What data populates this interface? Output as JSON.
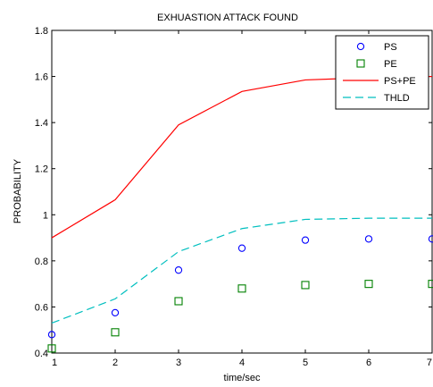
{
  "chart_data": {
    "type": "line",
    "title": "EXHUASTION ATTACK FOUND",
    "xlabel": "time/sec",
    "ylabel": "PROBABILITY",
    "x": [
      1,
      2,
      3,
      4,
      5,
      6,
      7
    ],
    "xlim": [
      1,
      7
    ],
    "ylim": [
      0.4,
      1.8
    ],
    "xticks": [
      "1",
      "2",
      "3",
      "4",
      "5",
      "6",
      "7"
    ],
    "yticks": [
      "0.4",
      "0.6",
      "0.8",
      "1",
      "1.2",
      "1.4",
      "1.6",
      "1.8"
    ],
    "grid": false,
    "legend_position": "top-right",
    "series": [
      {
        "name": "PS",
        "style": "circle-marker",
        "color": "#0000ff",
        "values": [
          0.48,
          0.575,
          0.76,
          0.855,
          0.89,
          0.895,
          0.895
        ]
      },
      {
        "name": "PE",
        "style": "square-marker",
        "color": "#008000",
        "values": [
          0.42,
          0.49,
          0.625,
          0.68,
          0.695,
          0.7,
          0.7
        ]
      },
      {
        "name": "PS+PE",
        "style": "solid-line",
        "color": "#ff0000",
        "values": [
          0.9,
          1.065,
          1.39,
          1.535,
          1.585,
          1.595,
          1.6
        ]
      },
      {
        "name": "THLD",
        "style": "dashed-line",
        "color": "#00bfbf",
        "values": [
          0.53,
          0.635,
          0.84,
          0.94,
          0.98,
          0.985,
          0.985
        ]
      }
    ]
  }
}
